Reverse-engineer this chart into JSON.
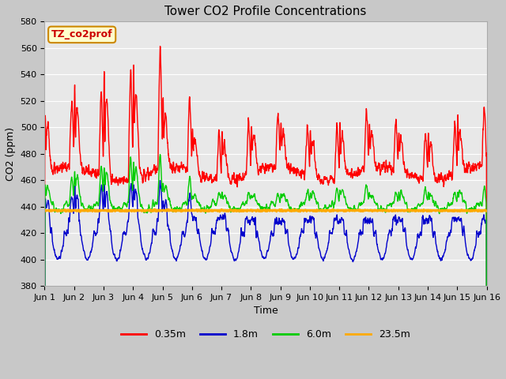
{
  "title": "Tower CO2 Profile Concentrations",
  "xlabel": "Time",
  "ylabel": "CO2 (ppm)",
  "ylim": [
    380,
    580
  ],
  "xlim": [
    0,
    15
  ],
  "bg_color": "#c8c8c8",
  "plot_bg_color": "#e8e8e8",
  "grid_color": "#ffffff",
  "series_colors": [
    "#ff0000",
    "#0000cc",
    "#00cc00",
    "#ffaa00"
  ],
  "series_labels": [
    "0.35m",
    "1.8m",
    "6.0m",
    "23.5m"
  ],
  "xtick_labels": [
    "Jun 1",
    "Jun 2",
    "Jun 3",
    "Jun 4",
    "Jun 5",
    "Jun 6",
    "Jun 7",
    "Jun 8",
    "Jun 9",
    "Jun 10",
    "Jun 11",
    "Jun 12",
    "Jun 13",
    "Jun 14",
    "Jun 15",
    "Jun 16"
  ],
  "xtick_positions": [
    0,
    1,
    2,
    3,
    4,
    5,
    6,
    7,
    8,
    9,
    10,
    11,
    12,
    13,
    14,
    15
  ],
  "ytick_values": [
    380,
    400,
    420,
    440,
    460,
    480,
    500,
    520,
    540,
    560,
    580
  ],
  "annotation_text": "TZ_co2prof",
  "annotation_bg": "#ffffcc",
  "annotation_border": "#cc8800",
  "title_fontsize": 11,
  "axis_fontsize": 9,
  "tick_fontsize": 8,
  "legend_fontsize": 9,
  "linewidth": 1.0
}
